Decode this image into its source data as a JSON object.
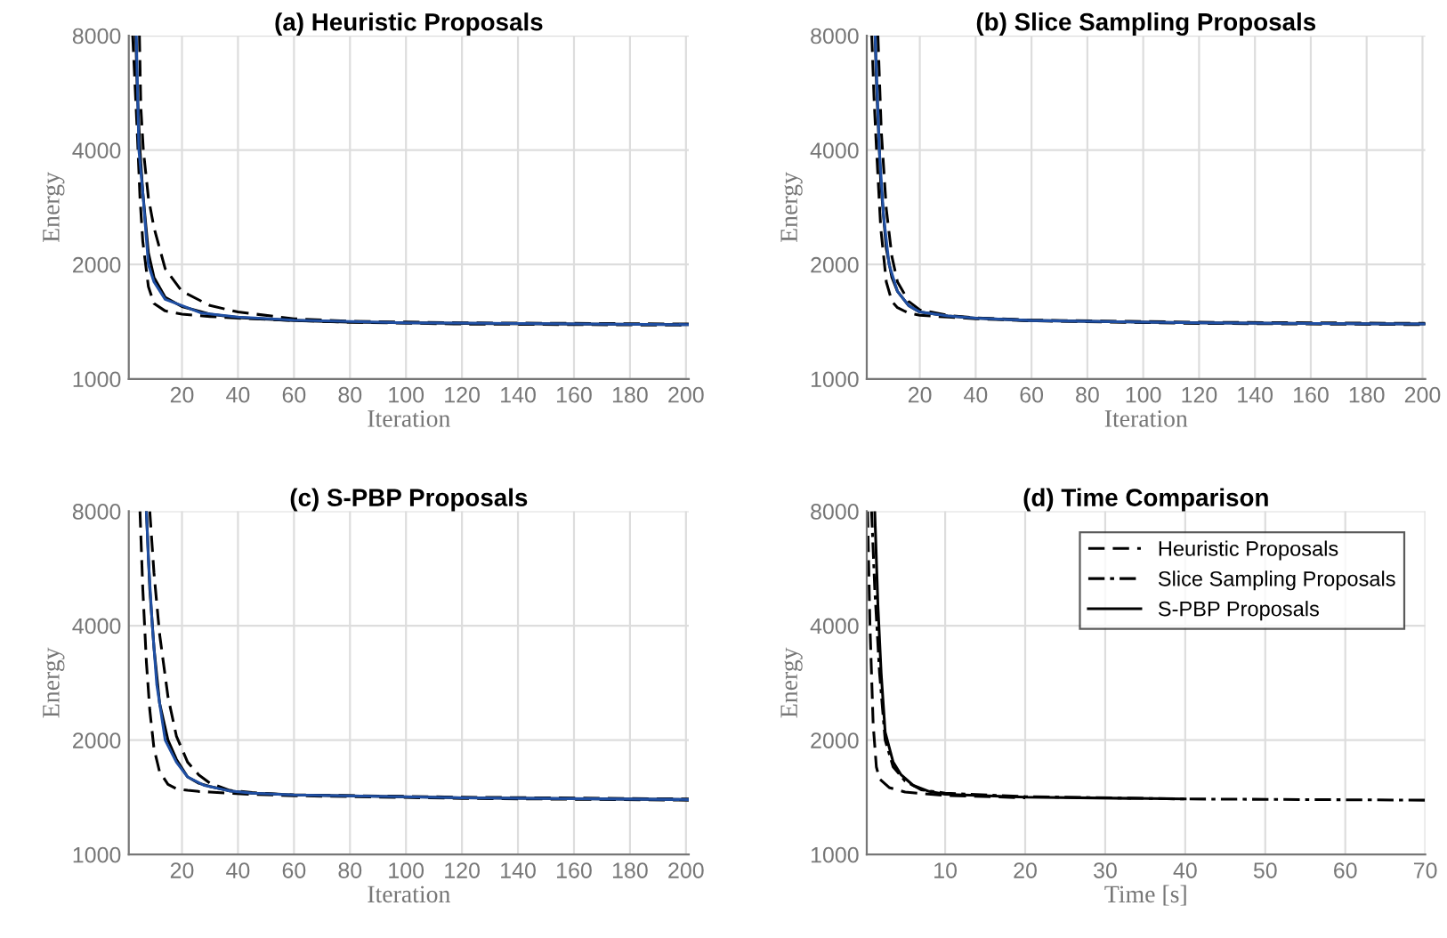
{
  "chart_data": [
    {
      "type": "line",
      "title": "(a) Heuristic Proposals",
      "xlabel": "Iteration",
      "ylabel": "Energy",
      "xlim": [
        1,
        201
      ],
      "xticks": [
        20,
        40,
        60,
        80,
        100,
        120,
        140,
        160,
        180,
        200
      ],
      "ylim": [
        1000,
        8000
      ],
      "yticks": [
        1000,
        2000,
        4000,
        8000
      ],
      "log": "y",
      "grid": true,
      "legend": false,
      "series": [
        {
          "color": "#000000",
          "line_style": "dashed",
          "x": [
            4.8,
            5.3,
            6.2,
            8,
            10,
            14,
            20,
            30,
            40,
            60,
            80,
            120,
            201
          ],
          "values": [
            8000,
            5200,
            4000,
            3000,
            2500,
            1950,
            1700,
            1560,
            1500,
            1440,
            1418,
            1405,
            1395
          ]
        },
        {
          "color": "#000000",
          "line_style": "dashed",
          "x": [
            2.4,
            3.2,
            4,
            5,
            6,
            8,
            10,
            14,
            20,
            30,
            40,
            60,
            80,
            120,
            201
          ],
          "values": [
            8000,
            6000,
            4500,
            3000,
            2300,
            1750,
            1580,
            1510,
            1480,
            1460,
            1445,
            1425,
            1410,
            1395,
            1385
          ]
        },
        {
          "color": "#000000",
          "line_style": "solid",
          "x": [
            3.5,
            4,
            5,
            6,
            8,
            10,
            14,
            20,
            30,
            40,
            60,
            80,
            120,
            201
          ],
          "values": [
            8000,
            5800,
            4000,
            3100,
            2150,
            1850,
            1640,
            1550,
            1480,
            1450,
            1425,
            1410,
            1400,
            1390
          ]
        },
        {
          "color": "#1f4fa3",
          "line_style": "solid",
          "x": [
            3.7,
            4.6,
            6,
            8,
            10,
            14,
            20,
            27,
            40,
            60,
            100,
            201
          ],
          "values": [
            8000,
            4000,
            3100,
            2000,
            1800,
            1620,
            1560,
            1490,
            1455,
            1428,
            1405,
            1390
          ]
        }
      ]
    },
    {
      "type": "line",
      "title": "(b) Slice Sampling Proposals",
      "xlabel": "Iteration",
      "ylabel": "Energy",
      "xlim": [
        1,
        201
      ],
      "xticks": [
        20,
        40,
        60,
        80,
        100,
        120,
        140,
        160,
        180,
        200
      ],
      "ylim": [
        1000,
        8000
      ],
      "yticks": [
        1000,
        2000,
        4000,
        8000
      ],
      "log": "y",
      "grid": true,
      "legend": false,
      "series": [
        {
          "color": "#000000",
          "line_style": "dashed",
          "x": [
            5,
            6.2,
            8,
            10,
            12,
            16,
            20,
            30,
            40,
            60,
            120,
            201
          ],
          "values": [
            8000,
            4500,
            2800,
            2100,
            1800,
            1600,
            1520,
            1470,
            1448,
            1428,
            1410,
            1400
          ]
        },
        {
          "color": "#000000",
          "line_style": "dashed",
          "x": [
            2.8,
            3.6,
            4.5,
            6,
            8,
            10,
            12,
            16,
            20,
            30,
            40,
            60,
            120,
            201
          ],
          "values": [
            8000,
            5500,
            4000,
            2500,
            1800,
            1600,
            1540,
            1490,
            1470,
            1455,
            1440,
            1422,
            1400,
            1390
          ]
        },
        {
          "color": "#000000",
          "line_style": "solid",
          "x": [
            4,
            4.5,
            6,
            8,
            10,
            12,
            16,
            20,
            30,
            40,
            60,
            120,
            201
          ],
          "values": [
            8000,
            6000,
            3300,
            2200,
            1850,
            1700,
            1560,
            1500,
            1465,
            1445,
            1425,
            1405,
            1395
          ]
        },
        {
          "color": "#1f4fa3",
          "line_style": "solid",
          "x": [
            4,
            5.5,
            7,
            9,
            12,
            16,
            20,
            30,
            40,
            60,
            120,
            201
          ],
          "values": [
            8000,
            4000,
            2700,
            2000,
            1700,
            1560,
            1500,
            1465,
            1445,
            1425,
            1405,
            1395
          ]
        }
      ]
    },
    {
      "type": "line",
      "title": "(c) S-PBP Proposals",
      "xlabel": "Iteration",
      "ylabel": "Energy",
      "xlim": [
        1,
        201
      ],
      "xticks": [
        20,
        40,
        60,
        80,
        100,
        120,
        140,
        160,
        180,
        200
      ],
      "ylim": [
        1000,
        8000
      ],
      "yticks": [
        1000,
        2000,
        4000,
        8000
      ],
      "log": "y",
      "grid": true,
      "legend": false,
      "series": [
        {
          "color": "#000000",
          "line_style": "dashed",
          "x": [
            8.5,
            10,
            12,
            15,
            18,
            22,
            26,
            30,
            37,
            45,
            60,
            120,
            201
          ],
          "values": [
            8000,
            5500,
            3800,
            2600,
            2050,
            1750,
            1620,
            1540,
            1475,
            1455,
            1435,
            1415,
            1400
          ]
        },
        {
          "color": "#000000",
          "line_style": "dashed",
          "x": [
            5,
            6,
            7.3,
            8.5,
            10,
            12,
            15,
            18,
            22,
            26,
            30,
            37,
            45,
            60,
            120,
            201
          ],
          "values": [
            8000,
            5000,
            3200,
            2400,
            1900,
            1650,
            1530,
            1490,
            1475,
            1465,
            1460,
            1450,
            1440,
            1428,
            1405,
            1390
          ]
        },
        {
          "color": "#000000",
          "line_style": "solid",
          "x": [
            7.3,
            8.5,
            10,
            12,
            15,
            18,
            22,
            26,
            30,
            37,
            45,
            60,
            120,
            201
          ],
          "values": [
            8000,
            5000,
            3500,
            2500,
            2000,
            1780,
            1600,
            1540,
            1510,
            1470,
            1450,
            1435,
            1410,
            1395
          ]
        },
        {
          "color": "#1f4fa3",
          "line_style": "solid",
          "x": [
            7.3,
            8,
            9.4,
            11,
            14,
            18,
            22,
            28,
            37,
            45,
            60,
            120,
            201
          ],
          "values": [
            8000,
            6000,
            4000,
            2800,
            2000,
            1750,
            1600,
            1520,
            1470,
            1450,
            1435,
            1410,
            1395
          ]
        }
      ]
    },
    {
      "type": "line",
      "title": "(d) Time Comparison",
      "xlabel": "Time [s]",
      "ylabel": "Energy",
      "xlim": [
        0.2,
        70
      ],
      "xticks": [
        10,
        20,
        30,
        40,
        50,
        60,
        70
      ],
      "ylim": [
        1000,
        8000
      ],
      "yticks": [
        1000,
        2000,
        4000,
        8000
      ],
      "log": "y",
      "grid": true,
      "legend": "top right",
      "series": [
        {
          "name": "Heuristic Proposals",
          "color": "#000000",
          "line_style": "dashed",
          "x": [
            0.3,
            0.6,
            1,
            1.4,
            1.8,
            3,
            5,
            10,
            20
          ],
          "values": [
            8000,
            4000,
            2200,
            1700,
            1580,
            1500,
            1460,
            1430,
            1410
          ]
        },
        {
          "name": "Slice Sampling Proposals",
          "color": "#000000",
          "line_style": "dashdot",
          "x": [
            0.8,
            1.2,
            1.8,
            2.5,
            3.5,
            5,
            7,
            10,
            20,
            40,
            70
          ],
          "values": [
            8000,
            5000,
            3000,
            2000,
            1700,
            1560,
            1480,
            1450,
            1420,
            1400,
            1390
          ]
        },
        {
          "name": "S-PBP Proposals",
          "color": "#000000",
          "line_style": "solid",
          "x": [
            1.2,
            1.6,
            2,
            2.5,
            3.5,
            4.5,
            6,
            8,
            10,
            20,
            40
          ],
          "values": [
            8000,
            4500,
            3000,
            2100,
            1750,
            1620,
            1520,
            1465,
            1440,
            1415,
            1400
          ]
        }
      ]
    }
  ]
}
